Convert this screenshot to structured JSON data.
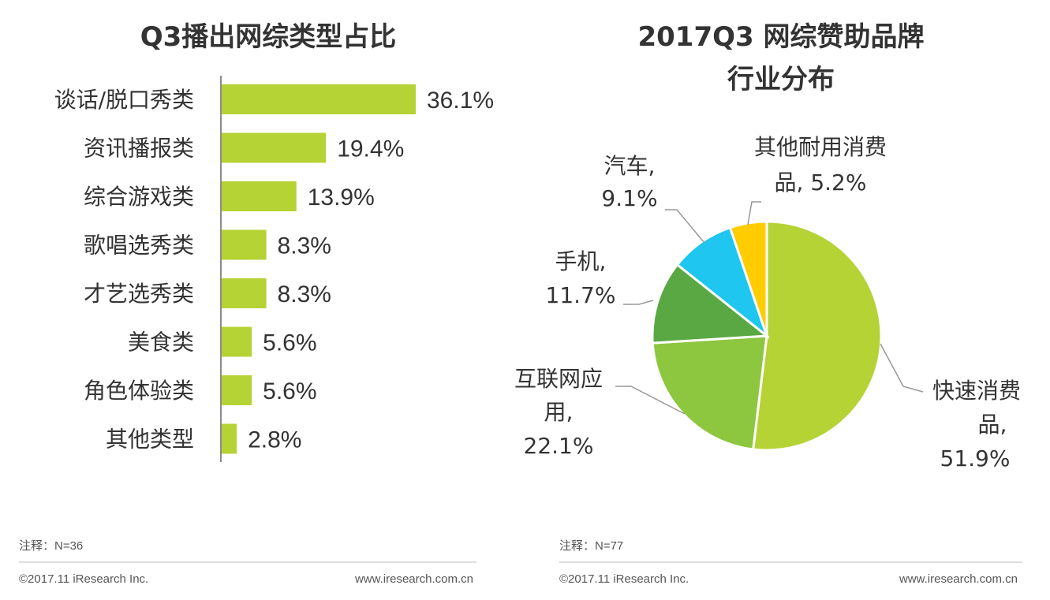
{
  "chart_data": [
    {
      "type": "bar",
      "orientation": "horizontal",
      "title": "Q3播出网综类型占比",
      "categories": [
        "谈话/脱口秀类",
        "资讯播报类",
        "综合游戏类",
        "歌唱选秀类",
        "才艺选秀类",
        "美食类",
        "角色体验类",
        "其他类型"
      ],
      "values": [
        36.1,
        19.4,
        13.9,
        8.3,
        8.3,
        5.6,
        5.6,
        2.8
      ],
      "value_labels": [
        "36.1%",
        "19.4%",
        "13.9%",
        "8.3%",
        "8.3%",
        "5.6%",
        "5.6%",
        "2.8%"
      ],
      "unit": "%",
      "xlim": [
        0,
        36.1
      ],
      "bar_color": "#b5d334",
      "note": "注释：N=36",
      "footer_left": "©2017.11 iResearch Inc.",
      "footer_right": "www.iresearch.com.cn"
    },
    {
      "type": "pie",
      "title_line1": "2017Q3 网综赞助品牌",
      "title_line2": "行业分布",
      "slices": [
        {
          "name": "快速消费品",
          "value": 51.9,
          "label_lines": [
            "快速消费",
            "品,",
            "51.9%"
          ],
          "color": "#b5d334"
        },
        {
          "name": "互联网应用",
          "value": 22.1,
          "label_lines": [
            "互联网应",
            "用,",
            "22.1%"
          ],
          "color": "#8dc63f"
        },
        {
          "name": "手机",
          "value": 11.7,
          "label_lines": [
            "手机,",
            "11.7%"
          ],
          "color": "#5aa843"
        },
        {
          "name": "汽车",
          "value": 9.1,
          "label_lines": [
            "汽车,",
            "9.1%"
          ],
          "color": "#1fc6ef"
        },
        {
          "name": "其他耐用消费品",
          "value": 5.2,
          "label_lines": [
            "其他耐用消费",
            "品, 5.2%"
          ],
          "color": "#ffcc00"
        }
      ],
      "note": "注释：N=77",
      "footer_left": "©2017.11 iResearch Inc.",
      "footer_right": "www.iresearch.com.cn"
    }
  ]
}
